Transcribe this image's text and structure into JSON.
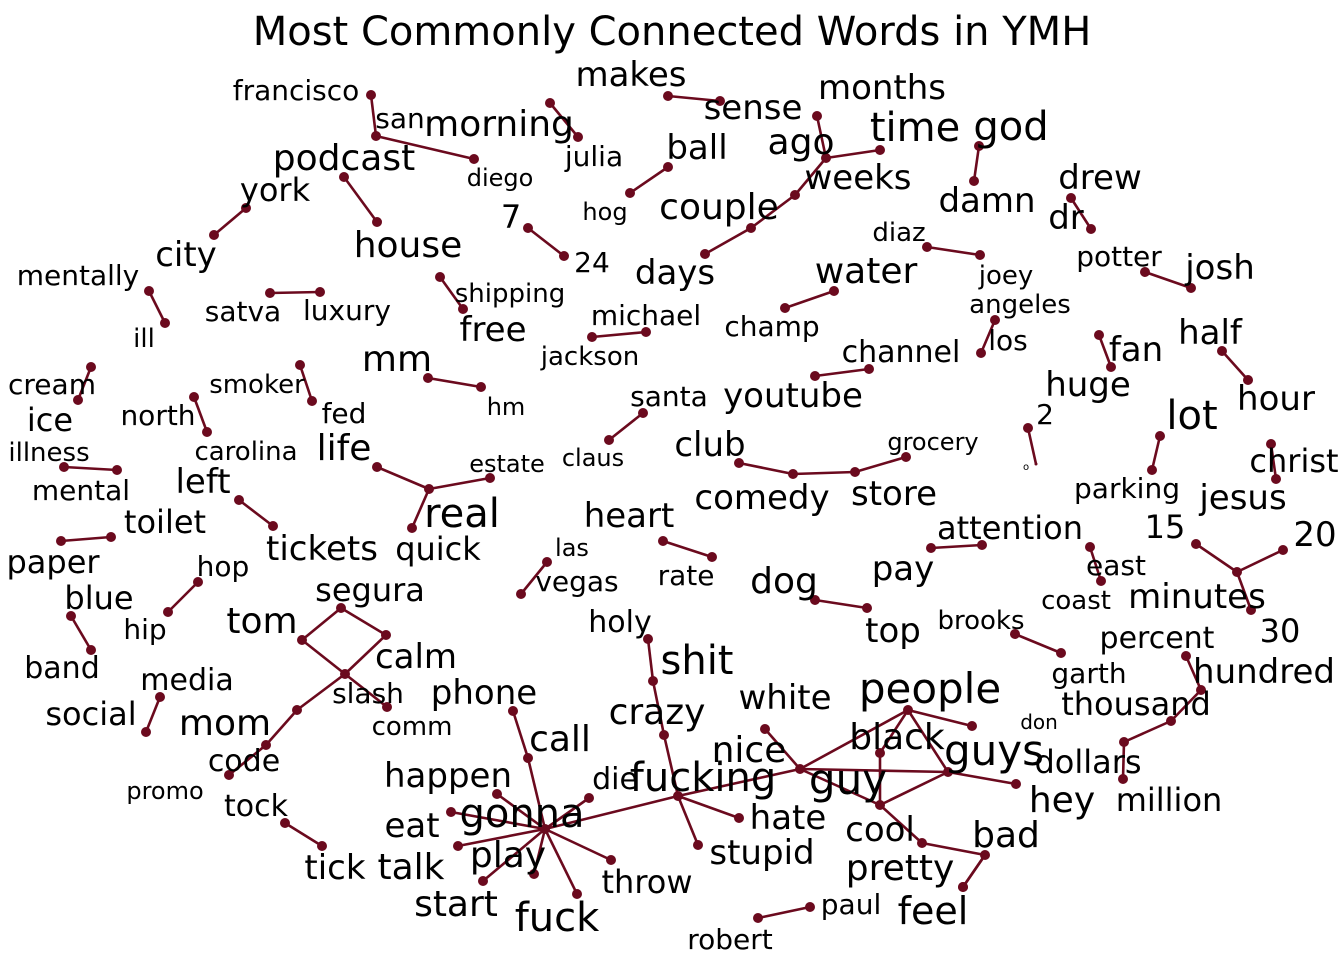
{
  "title": "Most Commonly Connected Words in YMH",
  "colors": {
    "edge": "#6b0a1e",
    "node": "#6b0a1e",
    "text": "#000000",
    "background": "#ffffff"
  },
  "nodes": [
    {
      "id": "francisco",
      "size": 4
    },
    {
      "id": "san",
      "size": 4
    },
    {
      "id": "diego",
      "size": 3
    },
    {
      "id": "morning",
      "size": 6
    },
    {
      "id": "julia",
      "size": 4
    },
    {
      "id": "makes",
      "size": 5
    },
    {
      "id": "sense",
      "size": 5
    },
    {
      "id": "months",
      "size": 5
    },
    {
      "id": "ago",
      "size": 6
    },
    {
      "id": "time",
      "size": 7
    },
    {
      "id": "weeks",
      "size": 5
    },
    {
      "id": "couple",
      "size": 6
    },
    {
      "id": "days",
      "size": 5
    },
    {
      "id": "god",
      "size": 7
    },
    {
      "id": "damn",
      "size": 5
    },
    {
      "id": "ball",
      "size": 5
    },
    {
      "id": "hog",
      "size": 3
    },
    {
      "id": "podcast",
      "size": 6
    },
    {
      "id": "house",
      "size": 6
    },
    {
      "id": "york",
      "size": 5
    },
    {
      "id": "city",
      "size": 5
    },
    {
      "id": "7",
      "size": 5
    },
    {
      "id": "24",
      "size": 4
    },
    {
      "id": "drew",
      "size": 5
    },
    {
      "id": "dr",
      "size": 5
    },
    {
      "id": "diaz",
      "size": 4
    },
    {
      "id": "joey",
      "size": 4
    },
    {
      "id": "potter",
      "size": 4
    },
    {
      "id": "josh",
      "size": 5
    },
    {
      "id": "mentally",
      "size": 4
    },
    {
      "id": "ill",
      "size": 3
    },
    {
      "id": "satva",
      "size": 4
    },
    {
      "id": "luxury",
      "size": 4
    },
    {
      "id": "shipping",
      "size": 4
    },
    {
      "id": "free",
      "size": 5
    },
    {
      "id": "michael",
      "size": 4
    },
    {
      "id": "jackson",
      "size": 4
    },
    {
      "id": "water",
      "size": 6
    },
    {
      "id": "champ",
      "size": 4
    },
    {
      "id": "angeles",
      "size": 4
    },
    {
      "id": "los",
      "size": 4
    },
    {
      "id": "half",
      "size": 5
    },
    {
      "id": "hour",
      "size": 5
    },
    {
      "id": "fan",
      "size": 5
    },
    {
      "id": "huge",
      "size": 5
    },
    {
      "id": "channel",
      "size": 5
    },
    {
      "id": "youtube",
      "size": 5
    },
    {
      "id": "cream",
      "size": 4
    },
    {
      "id": "ice",
      "size": 4
    },
    {
      "id": "smoker",
      "size": 4
    },
    {
      "id": "fed",
      "size": 4
    },
    {
      "id": "mm",
      "size": 6
    },
    {
      "id": "hm",
      "size": 3
    },
    {
      "id": "north",
      "size": 4
    },
    {
      "id": "carolina",
      "size": 4
    },
    {
      "id": "santa",
      "size": 4
    },
    {
      "id": "claus",
      "size": 3
    },
    {
      "id": "2",
      "size": 4
    },
    {
      "id": "o",
      "size": 1
    },
    {
      "id": "lot",
      "size": 7
    },
    {
      "id": "parking",
      "size": 4
    },
    {
      "id": "christ",
      "size": 5
    },
    {
      "id": "jesus",
      "size": 5
    },
    {
      "id": "illness",
      "size": 4
    },
    {
      "id": "mental",
      "size": 4
    },
    {
      "id": "life",
      "size": 6
    },
    {
      "id": "real",
      "size": 7
    },
    {
      "id": "estate",
      "size": 3
    },
    {
      "id": "quick",
      "size": 5
    },
    {
      "id": "club",
      "size": 5
    },
    {
      "id": "comedy",
      "size": 5
    },
    {
      "id": "store",
      "size": 5
    },
    {
      "id": "grocery",
      "size": 3
    },
    {
      "id": "left",
      "size": 5
    },
    {
      "id": "tickets",
      "size": 5
    },
    {
      "id": "toilet",
      "size": 5
    },
    {
      "id": "paper",
      "size": 5
    },
    {
      "id": "heart",
      "size": 5
    },
    {
      "id": "rate",
      "size": 4
    },
    {
      "id": "attention",
      "size": 5
    },
    {
      "id": "pay",
      "size": 5
    },
    {
      "id": "15",
      "size": 5
    },
    {
      "id": "20",
      "size": 5
    },
    {
      "id": "minutes",
      "size": 5
    },
    {
      "id": "30",
      "size": 5
    },
    {
      "id": "east",
      "size": 4
    },
    {
      "id": "coast",
      "size": 3
    },
    {
      "id": "las",
      "size": 3
    },
    {
      "id": "vegas",
      "size": 4
    },
    {
      "id": "dog",
      "size": 6
    },
    {
      "id": "top",
      "size": 5
    },
    {
      "id": "hop",
      "size": 4
    },
    {
      "id": "hip",
      "size": 4
    },
    {
      "id": "blue",
      "size": 5
    },
    {
      "id": "band",
      "size": 4
    },
    {
      "id": "tom",
      "size": 6
    },
    {
      "id": "segura",
      "size": 5
    },
    {
      "id": "calm",
      "size": 5
    },
    {
      "id": "slash",
      "size": 4
    },
    {
      "id": "comm",
      "size": 3
    },
    {
      "id": "mom",
      "size": 6
    },
    {
      "id": "code",
      "size": 4
    },
    {
      "id": "promo",
      "size": 3
    },
    {
      "id": "brooks",
      "size": 3
    },
    {
      "id": "garth",
      "size": 4
    },
    {
      "id": "percent",
      "size": 4
    },
    {
      "id": "hundred",
      "size": 5
    },
    {
      "id": "thousand",
      "size": 5
    },
    {
      "id": "dollars",
      "size": 5
    },
    {
      "id": "million",
      "size": 5
    },
    {
      "id": "media",
      "size": 4
    },
    {
      "id": "social",
      "size": 5
    },
    {
      "id": "holy",
      "size": 4
    },
    {
      "id": "shit",
      "size": 7
    },
    {
      "id": "crazy",
      "size": 6
    },
    {
      "id": "fucking",
      "size": 7
    },
    {
      "id": "phone",
      "size": 5
    },
    {
      "id": "call",
      "size": 6
    },
    {
      "id": "gonna",
      "size": 7
    },
    {
      "id": "white",
      "size": 5
    },
    {
      "id": "people",
      "size": 7
    },
    {
      "id": "black",
      "size": 6
    },
    {
      "id": "don",
      "size": 3
    },
    {
      "id": "guys",
      "size": 7
    },
    {
      "id": "nice",
      "size": 6
    },
    {
      "id": "guy",
      "size": 7
    },
    {
      "id": "hey",
      "size": 6
    },
    {
      "id": "cool",
      "size": 6
    },
    {
      "id": "bad",
      "size": 6
    },
    {
      "id": "pretty",
      "size": 6
    },
    {
      "id": "feel",
      "size": 7
    },
    {
      "id": "happen",
      "size": 5
    },
    {
      "id": "die",
      "size": 5
    },
    {
      "id": "eat",
      "size": 5
    },
    {
      "id": "talk",
      "size": 6
    },
    {
      "id": "play",
      "size": 6
    },
    {
      "id": "start",
      "size": 6
    },
    {
      "id": "fuck",
      "size": 7
    },
    {
      "id": "throw",
      "size": 5
    },
    {
      "id": "hate",
      "size": 6
    },
    {
      "id": "stupid",
      "size": 5
    },
    {
      "id": "tock",
      "size": 5
    },
    {
      "id": "tick",
      "size": 5
    },
    {
      "id": "paul",
      "size": 4
    },
    {
      "id": "robert",
      "size": 4
    }
  ],
  "edges": [
    [
      "francisco",
      "san"
    ],
    [
      "san",
      "diego"
    ],
    [
      "morning",
      "julia"
    ],
    [
      "makes",
      "sense"
    ],
    [
      "months",
      "ago"
    ],
    [
      "ago",
      "time"
    ],
    [
      "ago",
      "weeks"
    ],
    [
      "weeks",
      "couple"
    ],
    [
      "couple",
      "days"
    ],
    [
      "god",
      "damn"
    ],
    [
      "ball",
      "hog"
    ],
    [
      "podcast",
      "house"
    ],
    [
      "york",
      "city"
    ],
    [
      "7",
      "24"
    ],
    [
      "drew",
      "dr"
    ],
    [
      "diaz",
      "joey"
    ],
    [
      "potter",
      "josh"
    ],
    [
      "mentally",
      "ill"
    ],
    [
      "satva",
      "luxury"
    ],
    [
      "shipping",
      "free"
    ],
    [
      "michael",
      "jackson"
    ],
    [
      "water",
      "champ"
    ],
    [
      "angeles",
      "los"
    ],
    [
      "half",
      "hour"
    ],
    [
      "fan",
      "huge"
    ],
    [
      "channel",
      "youtube"
    ],
    [
      "cream",
      "ice"
    ],
    [
      "smoker",
      "fed"
    ],
    [
      "mm",
      "hm"
    ],
    [
      "north",
      "carolina"
    ],
    [
      "santa",
      "claus"
    ],
    [
      "2",
      "o"
    ],
    [
      "lot",
      "parking"
    ],
    [
      "christ",
      "jesus"
    ],
    [
      "illness",
      "mental"
    ],
    [
      "life",
      "real"
    ],
    [
      "real",
      "estate"
    ],
    [
      "real",
      "quick"
    ],
    [
      "club",
      "comedy"
    ],
    [
      "comedy",
      "store"
    ],
    [
      "store",
      "grocery"
    ],
    [
      "left",
      "tickets"
    ],
    [
      "toilet",
      "paper"
    ],
    [
      "heart",
      "rate"
    ],
    [
      "attention",
      "pay"
    ],
    [
      "15",
      "minutes"
    ],
    [
      "20",
      "minutes"
    ],
    [
      "minutes",
      "30"
    ],
    [
      "east",
      "coast"
    ],
    [
      "las",
      "vegas"
    ],
    [
      "dog",
      "top"
    ],
    [
      "hop",
      "hip"
    ],
    [
      "blue",
      "band"
    ],
    [
      "tom",
      "segura"
    ],
    [
      "segura",
      "calm"
    ],
    [
      "calm",
      "slash"
    ],
    [
      "tom",
      "slash"
    ],
    [
      "slash",
      "comm"
    ],
    [
      "slash",
      "mom"
    ],
    [
      "mom",
      "code"
    ],
    [
      "code",
      "promo"
    ],
    [
      "brooks",
      "garth"
    ],
    [
      "percent",
      "hundred"
    ],
    [
      "hundred",
      "thousand"
    ],
    [
      "thousand",
      "dollars"
    ],
    [
      "dollars",
      "million"
    ],
    [
      "media",
      "social"
    ],
    [
      "holy",
      "shit"
    ],
    [
      "shit",
      "crazy"
    ],
    [
      "crazy",
      "fucking"
    ],
    [
      "phone",
      "call"
    ],
    [
      "call",
      "gonna"
    ],
    [
      "white",
      "nice"
    ],
    [
      "nice",
      "people"
    ],
    [
      "people",
      "black"
    ],
    [
      "people",
      "guys"
    ],
    [
      "people",
      "don"
    ],
    [
      "nice",
      "guys"
    ],
    [
      "nice",
      "guy"
    ],
    [
      "black",
      "guy"
    ],
    [
      "guys",
      "hey"
    ],
    [
      "guys",
      "guy"
    ],
    [
      "guy",
      "cool"
    ],
    [
      "cool",
      "bad"
    ],
    [
      "bad",
      "pretty"
    ],
    [
      "bad",
      "feel"
    ],
    [
      "fucking",
      "nice"
    ],
    [
      "gonna",
      "happen"
    ],
    [
      "gonna",
      "die"
    ],
    [
      "gonna",
      "eat"
    ],
    [
      "gonna",
      "talk"
    ],
    [
      "gonna",
      "play"
    ],
    [
      "gonna",
      "start"
    ],
    [
      "gonna",
      "fuck"
    ],
    [
      "gonna",
      "throw"
    ],
    [
      "gonna",
      "fucking"
    ],
    [
      "fucking",
      "hate"
    ],
    [
      "fucking",
      "stupid"
    ],
    [
      "tock",
      "tick"
    ],
    [
      "paul",
      "robert"
    ]
  ]
}
